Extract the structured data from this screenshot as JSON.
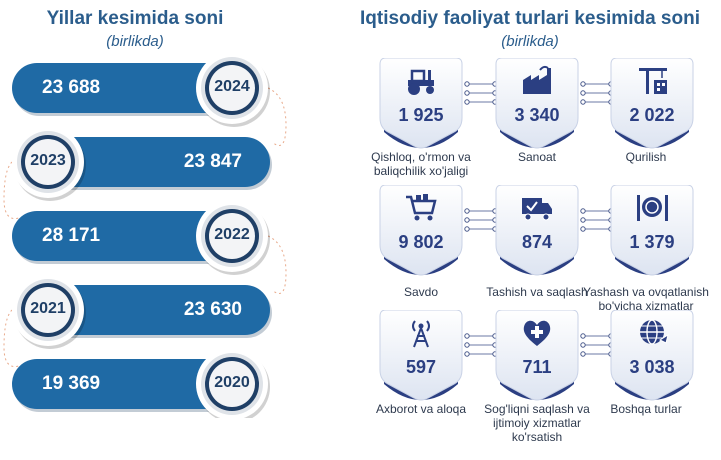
{
  "left_panel": {
    "title": "Yillar kesimida soni",
    "subtitle": "(birlikda)"
  },
  "right_panel": {
    "title": "Iqtisodiy faoliyat turlari kesimida soni",
    "subtitle": "(birlikda)"
  },
  "chart_data": [
    {
      "type": "bar",
      "title": "Yillar kesimida soni",
      "subtitle": "(birlikda)",
      "categories": [
        "2024",
        "2023",
        "2022",
        "2021",
        "2020"
      ],
      "values": [
        23688,
        23847,
        28171,
        23630,
        19369
      ],
      "value_labels": [
        "23 688",
        "23 847",
        "28 171",
        "23 630",
        "19 369"
      ],
      "grid": false
    },
    {
      "type": "table",
      "title": "Iqtisodiy faoliyat turlari kesimida soni",
      "subtitle": "(birlikda)",
      "items": [
        {
          "label": "Qishloq, o'rmon va baliqchilik xo'jaligi",
          "value": "1 925",
          "icon": "tractor-icon"
        },
        {
          "label": "Sanoat",
          "value": "3 340",
          "icon": "factory-icon"
        },
        {
          "label": "Qurilish",
          "value": "2 022",
          "icon": "crane-icon"
        },
        {
          "label": "Savdo",
          "value": "9 802",
          "icon": "shopping-cart-icon"
        },
        {
          "label": "Tashish va saqlash",
          "value": "874",
          "icon": "delivery-truck-icon"
        },
        {
          "label": "Yashash va ovqatlanish bo'yicha xizmatlar",
          "value": "1 379",
          "icon": "plate-cutlery-icon"
        },
        {
          "label": "Axborot va aloqa",
          "value": "597",
          "icon": "antenna-tower-icon"
        },
        {
          "label": "Sog'liqni saqlash va ijtimoiy xizmatlar ko'rsatish",
          "value": "711",
          "icon": "health-heart-icon"
        },
        {
          "label": "Boshqa turlar",
          "value": "3 038",
          "icon": "globe-icon"
        }
      ]
    }
  ],
  "colors": {
    "bar_blue": "#1f6aa5",
    "title_blue": "#2b5d8c",
    "navy": "#1f3f66",
    "tile_top": "#eef2f9",
    "tile_bottom": "#2b3f82",
    "value_text": "#2b3f82"
  }
}
